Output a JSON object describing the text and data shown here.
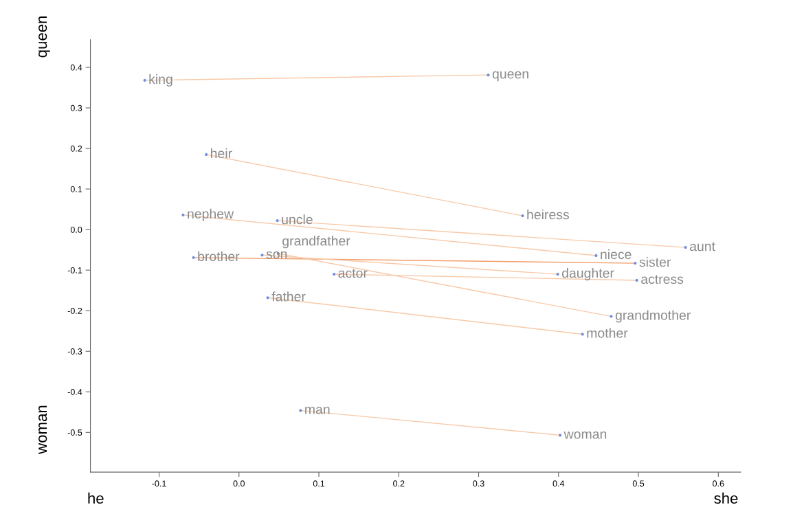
{
  "chart_data": {
    "type": "scatter",
    "xlim": [
      -0.186,
      0.628
    ],
    "ylim": [
      -0.598,
      0.468
    ],
    "xticks": [
      -0.1,
      {
        "value": 0,
        "label": "0.0"
      },
      0.1,
      0.2,
      0.3,
      0.4,
      0.5,
      0.6
    ],
    "yticks": [
      -0.5,
      -0.4,
      -0.3,
      -0.2,
      -0.1,
      {
        "value": 0,
        "label": "0.0"
      },
      0.1,
      0.2,
      0.3,
      0.4
    ],
    "grid": false,
    "annotations": [
      "he",
      "she",
      "queen",
      "woman"
    ],
    "series": [
      {
        "type": "line",
        "color": "#f8c9a8",
        "x": [
          -0.118,
          0.312
        ],
        "values": [
          0.368,
          0.381
        ]
      },
      {
        "type": "line",
        "color": "#f8c9a8",
        "x": [
          -0.041,
          0.355
        ],
        "values": [
          0.185,
          0.034
        ]
      },
      {
        "type": "line",
        "color": "#f8c9a8",
        "x": [
          -0.07,
          0.447
        ],
        "values": [
          0.036,
          -0.064
        ]
      },
      {
        "type": "line",
        "color": "#f8c9a8",
        "x": [
          0.048,
          0.559
        ],
        "values": [
          0.022,
          -0.044
        ]
      },
      {
        "type": "line",
        "color": "#f39c6b",
        "x": [
          -0.057,
          0.496
        ],
        "values": [
          -0.069,
          -0.083
        ]
      },
      {
        "type": "line",
        "color": "#f8c9a8",
        "x": [
          0.029,
          0.399
        ],
        "values": [
          -0.063,
          -0.11
        ]
      },
      {
        "type": "line",
        "color": "#f8c9a8",
        "x": [
          0.049,
          0.466
        ],
        "values": [
          -0.059,
          -0.214
        ]
      },
      {
        "type": "line",
        "color": "#f8c9a8",
        "x": [
          0.119,
          0.498
        ],
        "values": [
          -0.11,
          -0.125
        ]
      },
      {
        "type": "line",
        "color": "#f8c9a8",
        "x": [
          0.036,
          0.43
        ],
        "values": [
          -0.168,
          -0.258
        ]
      },
      {
        "type": "line",
        "color": "#f8c9a8",
        "x": [
          0.077,
          0.402
        ],
        "values": [
          -0.446,
          -0.507
        ]
      },
      {
        "type": "scatter",
        "color": "#6f8fe0",
        "marker": "circle",
        "x": [
          -0.118,
          0.312,
          -0.041,
          0.355,
          -0.07,
          0.447,
          0.048,
          0.559,
          -0.057,
          0.496,
          0.029,
          0.399,
          0.049,
          0.466,
          0.119,
          0.498,
          0.036,
          0.43,
          0.077,
          0.402
        ],
        "values": [
          0.368,
          0.381,
          0.185,
          0.034,
          0.036,
          -0.064,
          0.022,
          -0.044,
          -0.069,
          -0.083,
          -0.063,
          -0.11,
          -0.059,
          -0.214,
          -0.11,
          -0.125,
          -0.168,
          -0.258,
          -0.446,
          -0.507
        ],
        "value_labels": [
          "king",
          "queen",
          "heir",
          "heiress",
          "nephew",
          "niece",
          "uncle",
          "aunt",
          "brother",
          "sister",
          "son",
          "daughter",
          "grandfather",
          "grandmother",
          "actor",
          "actress",
          "father",
          "mother",
          "man",
          "woman"
        ]
      }
    ]
  }
}
